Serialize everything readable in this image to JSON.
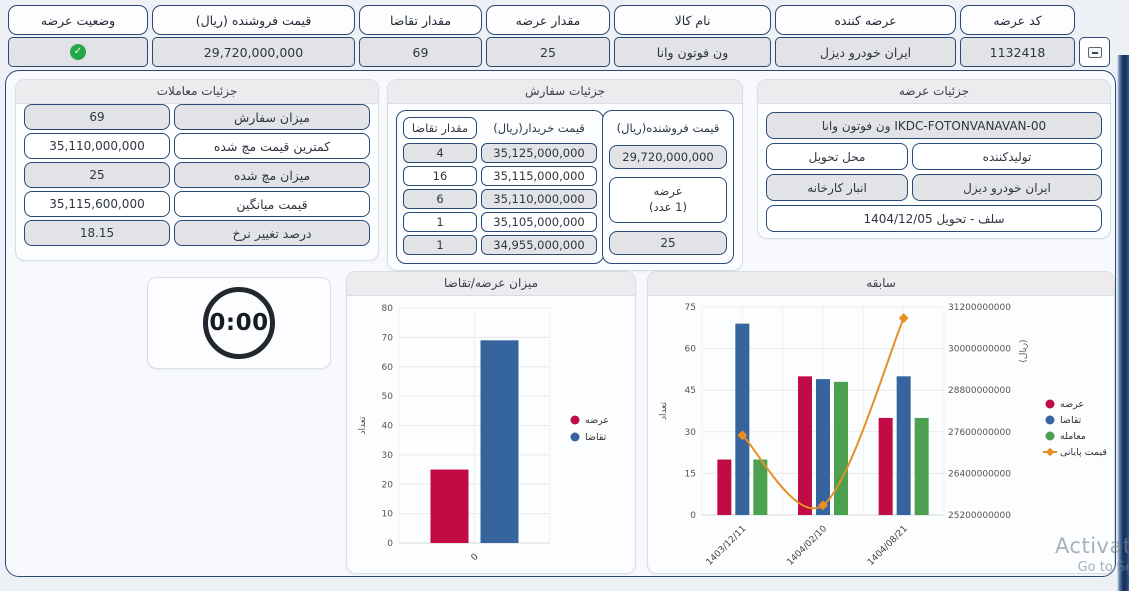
{
  "table": {
    "headers": {
      "status": "وضعیت عرضه",
      "seller_price": "قیمت فروشنده (ریال)",
      "demand_qty": "مقدار تقاضا",
      "supply_qty": "مقدار عرضه",
      "product_name": "نام کالا",
      "supplier": "عرضه کننده",
      "supply_code": "کد عرضه"
    },
    "row": {
      "status_check": "✓",
      "seller_price": "29,720,000,000",
      "demand_qty": "69",
      "supply_qty": "25",
      "product_name": "ون فوتون وانا",
      "supplier": "ایران خودرو دیزل",
      "supply_code": "1132418"
    },
    "collapse_icon": "minus-square"
  },
  "panels": {
    "trades": {
      "title": "جزئیات معاملات",
      "rows": [
        {
          "label": "میزان سفارش",
          "value": "69"
        },
        {
          "label": "کمترین قیمت مچ شده",
          "value": "35,110,000,000"
        },
        {
          "label": "میزان مچ شده",
          "value": "25"
        },
        {
          "label": "قیمت میانگین",
          "value": "35,115,600,000"
        },
        {
          "label": "درصد تغییر نرخ",
          "value": "18.15"
        }
      ]
    },
    "orders": {
      "title": "جزئیات سفارش",
      "book": {
        "qty_header": "مقدار تقاضا",
        "price_header": "قیمت خریدار(ریال)",
        "rows": [
          {
            "qty": "4",
            "price": "35,125,000,000"
          },
          {
            "qty": "16",
            "price": "35,115,000,000"
          },
          {
            "qty": "6",
            "price": "35,110,000,000"
          },
          {
            "qty": "1",
            "price": "35,105,000,000"
          },
          {
            "qty": "1",
            "price": "34,955,000,000"
          }
        ]
      },
      "seller": {
        "header": "قیمت فروشنده(ریال)",
        "price": "29,720,000,000",
        "supply_line1": "عرضه",
        "supply_line2": "(1 عدد)",
        "amount": "25"
      }
    },
    "supply": {
      "title": "جزئیات عرضه",
      "product": "ون فوتون وانا IKDC-FOTONVANAVAN-00",
      "delivery_place_header": "محل تحویل",
      "producer_header": "تولیدکننده",
      "delivery_place": "انبار کارخانه",
      "producer": "ایران خودرو دیزل",
      "terms": "سلف - تحویل 1404/12/05"
    }
  },
  "timer": {
    "value": "0:00"
  },
  "chart_data": [
    {
      "type": "bar",
      "title": "میزان عرضه/تقاضا",
      "categories": [
        "0"
      ],
      "series": [
        {
          "name": "عرضه",
          "color": "#c00b45",
          "values": [
            25
          ]
        },
        {
          "name": "تقاضا",
          "color": "#35659c",
          "values": [
            69
          ]
        }
      ],
      "ylabel": "تعداد",
      "ylim": [
        0,
        80
      ],
      "yticks": [
        0,
        10,
        20,
        30,
        40,
        50,
        60,
        70,
        80
      ],
      "grid": true,
      "legend_position": "right"
    },
    {
      "type": "bar+line",
      "title": "سابقه",
      "categories": [
        "1403/12/11",
        "1404/02/10",
        "1404/08/21"
      ],
      "series": [
        {
          "name": "عرضه",
          "color": "#c00b45",
          "values": [
            20,
            50,
            35
          ]
        },
        {
          "name": "تقاضا",
          "color": "#35659c",
          "values": [
            69,
            49,
            50
          ]
        },
        {
          "name": "معامله",
          "color": "#4ca050",
          "values": [
            20,
            48,
            35
          ]
        }
      ],
      "line_series": {
        "name": "قیمت پایانی",
        "color": "#e78f24",
        "axis": "y2",
        "values": [
          27500000000,
          25480000000,
          30880000000
        ]
      },
      "ylabel": "تعداد",
      "y2label": "(ریال)",
      "ylim": [
        0,
        75
      ],
      "yticks": [
        0,
        15,
        30,
        45,
        60,
        75
      ],
      "y2lim": [
        25200000000,
        31200000000
      ],
      "y2ticks": [
        25200000000,
        26400000000,
        27600000000,
        28800000000,
        30000000000,
        31200000000
      ],
      "grid": true,
      "legend_position": "right"
    }
  ],
  "watermark": {
    "line1": "Activate",
    "line2": "Go to Setti"
  }
}
